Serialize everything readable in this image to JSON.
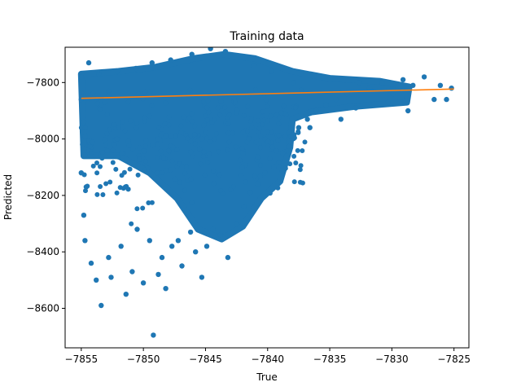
{
  "chart_data": {
    "type": "scatter",
    "title": "Training data",
    "xlabel": "True",
    "ylabel": "Predicted",
    "xlim": [
      -7856.3,
      -7823.8
    ],
    "ylim": [
      -8740,
      -7675
    ],
    "xticks": [
      -7855,
      -7850,
      -7845,
      -7840,
      -7835,
      -7830,
      -7825
    ],
    "yticks": [
      -8600,
      -8400,
      -8200,
      -8000,
      -7800
    ],
    "xtick_labels": [
      "−7855",
      "−7850",
      "−7845",
      "−7840",
      "−7835",
      "−7830",
      "−7825"
    ],
    "ytick_labels": [
      "−8600",
      "−8400",
      "−8200",
      "−8000",
      "−7800"
    ],
    "grid": false,
    "series": [
      {
        "kind": "scatter",
        "color": "#1f77b4",
        "points": [
          [
            -7855,
            -7860
          ],
          [
            -7855,
            -7780
          ],
          [
            -7854.8,
            -7940
          ],
          [
            -7854.9,
            -8020
          ],
          [
            -7855,
            -8120
          ],
          [
            -7854.6,
            -8170
          ],
          [
            -7854.8,
            -8270
          ],
          [
            -7854.7,
            -8360
          ],
          [
            -7854.2,
            -8440
          ],
          [
            -7853.8,
            -8500
          ],
          [
            -7853.4,
            -8590
          ],
          [
            -7852.8,
            -8420
          ],
          [
            -7852.6,
            -8490
          ],
          [
            -7851.8,
            -8380
          ],
          [
            -7851.4,
            -8550
          ],
          [
            -7850.9,
            -8470
          ],
          [
            -7850.5,
            -8320
          ],
          [
            -7850,
            -8510
          ],
          [
            -7849.5,
            -8360
          ],
          [
            -7849.2,
            -8695
          ],
          [
            -7848.8,
            -8480
          ],
          [
            -7848.5,
            -8420
          ],
          [
            -7848.2,
            -8530
          ],
          [
            -7847.7,
            -8380
          ],
          [
            -7847.2,
            -8360
          ],
          [
            -7846.9,
            -8450
          ],
          [
            -7846.2,
            -8330
          ],
          [
            -7845.8,
            -8400
          ],
          [
            -7845.3,
            -8490
          ],
          [
            -7844.9,
            -8380
          ],
          [
            -7844.4,
            -8320
          ],
          [
            -7843.8,
            -8340
          ],
          [
            -7843.2,
            -8420
          ],
          [
            -7842.5,
            -8300
          ],
          [
            -7841.9,
            -8240
          ],
          [
            -7841.4,
            -8190
          ],
          [
            -7840.8,
            -8160
          ],
          [
            -7840.2,
            -8120
          ],
          [
            -7839.5,
            -8100
          ],
          [
            -7838.8,
            -8050
          ],
          [
            -7838.1,
            -7990
          ],
          [
            -7837.5,
            -7960
          ],
          [
            -7836.8,
            -7930
          ],
          [
            -7836.1,
            -7900
          ],
          [
            -7835.3,
            -7880
          ],
          [
            -7834.5,
            -7860
          ],
          [
            -7833.6,
            -7840
          ],
          [
            -7832.6,
            -7800
          ],
          [
            -7831.8,
            -7820
          ],
          [
            -7830.8,
            -7800
          ],
          [
            -7829.9,
            -7840
          ],
          [
            -7829.1,
            -7790
          ],
          [
            -7828.3,
            -7810
          ],
          [
            -7827.4,
            -7780
          ],
          [
            -7826.6,
            -7860
          ],
          [
            -7826.1,
            -7810
          ],
          [
            -7825.6,
            -7860
          ],
          [
            -7825.2,
            -7820
          ],
          [
            -7828.7,
            -7900
          ],
          [
            -7830.3,
            -7870
          ],
          [
            -7832.9,
            -7890
          ],
          [
            -7834.1,
            -7930
          ],
          [
            -7836.6,
            -7960
          ],
          [
            -7837.9,
            -7800
          ],
          [
            -7839.7,
            -7760
          ],
          [
            -7841.1,
            -7740
          ],
          [
            -7843.4,
            -7690
          ],
          [
            -7844.6,
            -7680
          ],
          [
            -7846.1,
            -7700
          ],
          [
            -7847.8,
            -7720
          ],
          [
            -7849.3,
            -7730
          ],
          [
            -7850.6,
            -7750
          ],
          [
            -7852.1,
            -7760
          ],
          [
            -7853.6,
            -7770
          ],
          [
            -7854.4,
            -7730
          ]
        ]
      },
      {
        "kind": "line",
        "color": "#ff7f0e",
        "points": [
          [
            -7855,
            -7856
          ],
          [
            -7825,
            -7823
          ]
        ]
      }
    ]
  }
}
